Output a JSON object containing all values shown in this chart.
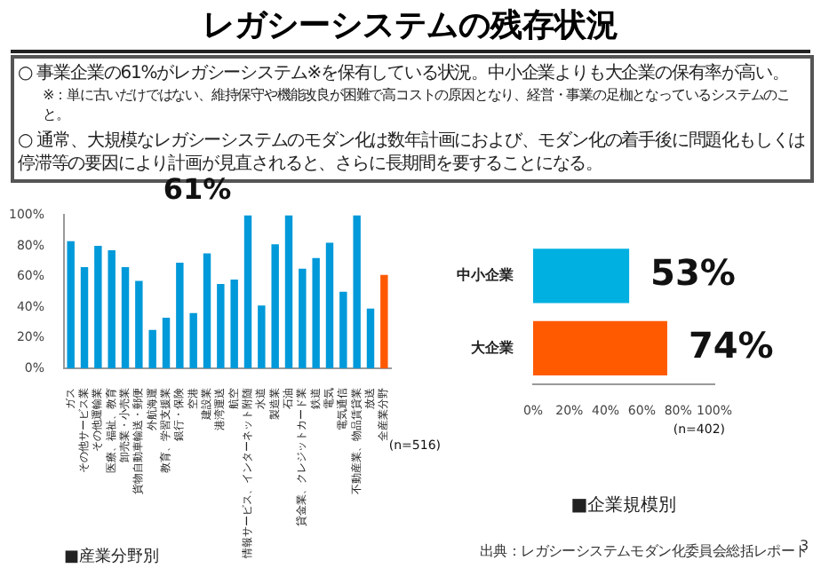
{
  "chart_data": [
    {
      "type": "other",
      "title": "レガシーシステムの残存状況",
      "annotations": [
        "○ 事業企業の61%がレガシーシステム※を保有している状況。中小企業よりも大企業の保有率が高い。",
        "※：単に古いだけではない、維持保守や機能改良が困難で高コストの原因となり、経営・事業の足枷となっているシステムのこと。",
        "○ 通常、大規模なレガシーシステムのモダン化は数年計画におよび、モダン化の着手後に問題化もしくは停滞等の要因により計画が見直されると、さらに長期間を要することになる。",
        "出典：レガシーシステムモダン化委員会総括レポート",
        "3"
      ]
    },
    {
      "type": "bar",
      "title": "61%",
      "xlabel": "■産業分野別",
      "categories": [
        "ガス",
        "その他サービス業",
        "その他運輸業",
        "医療、福祉、教育",
        "卸売業・小売業",
        "貨物自動車輸送・郵便",
        "外航海運",
        "教育、学習支援業",
        "銀行・保険",
        "空港",
        "建設業",
        "港湾運送",
        "航空",
        "情報サービス、インターネット附随",
        "水道",
        "製造業",
        "石油",
        "貸金業、クレジットカード業",
        "鉄道",
        "電気",
        "電気通信",
        "不動産業、物品賃貸業",
        "放送",
        "全産業分野"
      ],
      "values": [
        83,
        66,
        80,
        77,
        66,
        57,
        25,
        33,
        69,
        36,
        75,
        55,
        58,
        100,
        41,
        81,
        100,
        65,
        72,
        82,
        50,
        100,
        39,
        61
      ],
      "colors": [
        "#0099d9",
        "#0099d9",
        "#0099d9",
        "#0099d9",
        "#0099d9",
        "#0099d9",
        "#0099d9",
        "#0099d9",
        "#0099d9",
        "#0099d9",
        "#0099d9",
        "#0099d9",
        "#0099d9",
        "#0099d9",
        "#0099d9",
        "#0099d9",
        "#0099d9",
        "#0099d9",
        "#0099d9",
        "#0099d9",
        "#0099d9",
        "#0099d9",
        "#0099d9",
        "#ff5a00"
      ],
      "ylim": [
        0,
        100
      ],
      "yticks": [
        {
          "value": 0,
          "label": "0%"
        },
        {
          "value": 20,
          "label": "20%"
        },
        {
          "value": 40,
          "label": "40%"
        },
        {
          "value": 60,
          "label": "60%"
        },
        {
          "value": 80,
          "label": "80%"
        },
        {
          "value": 100,
          "label": "100%"
        }
      ],
      "grid": false,
      "legend": false,
      "annotations": [
        "(n=516)"
      ]
    },
    {
      "type": "bar",
      "orientation": "horizontal",
      "xlabel": "■企業規模別",
      "categories": [
        "中小企業",
        "大企業"
      ],
      "values": [
        53,
        74
      ],
      "colors": [
        "#00b0e0",
        "#ff5a00"
      ],
      "value_labels": [
        "53%",
        "74%"
      ],
      "xlim": [
        0,
        100
      ],
      "xticks": [
        {
          "value": 0,
          "label": "0%"
        },
        {
          "value": 20,
          "label": "20%"
        },
        {
          "value": 40,
          "label": "40%"
        },
        {
          "value": 60,
          "label": "60%"
        },
        {
          "value": 80,
          "label": "80%"
        },
        {
          "value": 100,
          "label": "100%"
        }
      ],
      "grid": false,
      "legend": false,
      "annotations": [
        "(n=402)"
      ]
    }
  ]
}
